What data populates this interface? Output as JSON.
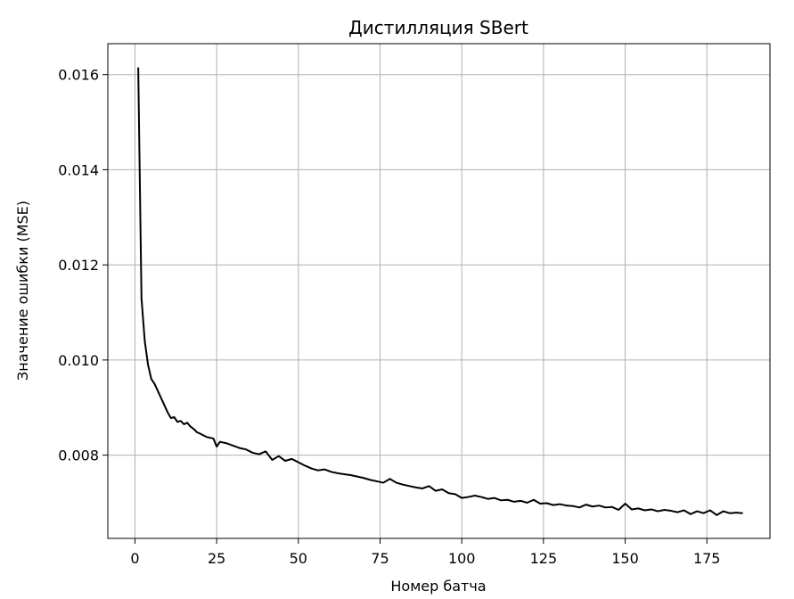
{
  "chart_data": {
    "type": "line",
    "title": "Дистилляция SBert",
    "xlabel": "Номер батча",
    "ylabel": "Значение ошибки (MSE)",
    "xlim": [
      -8.3,
      194.3
    ],
    "ylim": [
      0.00625,
      0.01665
    ],
    "x_ticks": [
      0,
      25,
      50,
      75,
      100,
      125,
      150,
      175
    ],
    "y_ticks": [
      0.008,
      0.01,
      0.012,
      0.014,
      0.016
    ],
    "y_tick_labels": [
      "0.008",
      "0.010",
      "0.012",
      "0.014",
      "0.016"
    ],
    "grid": true,
    "line_color": "#000000",
    "series": [
      {
        "x": [
          1,
          2,
          3,
          4,
          5,
          6,
          7,
          8,
          9,
          10,
          11,
          12,
          13,
          14,
          15,
          16,
          17,
          18,
          19,
          20,
          22,
          24,
          25,
          26,
          28,
          30,
          32,
          34,
          36,
          38,
          40,
          42,
          44,
          46,
          48,
          50,
          52,
          54,
          56,
          58,
          60,
          62,
          64,
          66,
          68,
          70,
          72,
          74,
          76,
          78,
          80,
          82,
          84,
          86,
          88,
          90,
          92,
          94,
          96,
          98,
          100,
          102,
          104,
          106,
          108,
          110,
          112,
          114,
          116,
          118,
          120,
          122,
          124,
          126,
          128,
          130,
          132,
          134,
          136,
          138,
          140,
          142,
          144,
          146,
          148,
          150,
          152,
          154,
          156,
          158,
          160,
          162,
          164,
          166,
          168,
          170,
          172,
          174,
          176,
          178,
          180,
          182,
          184,
          186
        ],
        "y": [
          0.01615,
          0.0113,
          0.0104,
          0.0099,
          0.0096,
          0.0095,
          0.00935,
          0.0092,
          0.00905,
          0.0089,
          0.00878,
          0.0088,
          0.0087,
          0.00872,
          0.00865,
          0.00868,
          0.0086,
          0.00855,
          0.00848,
          0.00845,
          0.00838,
          0.00835,
          0.00818,
          0.00828,
          0.00825,
          0.0082,
          0.00815,
          0.00812,
          0.00805,
          0.00802,
          0.00808,
          0.0079,
          0.00798,
          0.00788,
          0.00792,
          0.00785,
          0.00778,
          0.00772,
          0.00768,
          0.0077,
          0.00765,
          0.00762,
          0.0076,
          0.00758,
          0.00755,
          0.00752,
          0.00748,
          0.00745,
          0.00742,
          0.0075,
          0.00742,
          0.00738,
          0.00735,
          0.00732,
          0.0073,
          0.00735,
          0.00725,
          0.00728,
          0.0072,
          0.00718,
          0.0071,
          0.00712,
          0.00715,
          0.00712,
          0.00708,
          0.0071,
          0.00705,
          0.00706,
          0.00702,
          0.00704,
          0.007,
          0.00706,
          0.00698,
          0.00699,
          0.00695,
          0.00697,
          0.00694,
          0.00693,
          0.0069,
          0.00696,
          0.00692,
          0.00694,
          0.0069,
          0.00691,
          0.00685,
          0.00698,
          0.00686,
          0.00688,
          0.00684,
          0.00686,
          0.00682,
          0.00685,
          0.00683,
          0.0068,
          0.00684,
          0.00676,
          0.00682,
          0.00678,
          0.00684,
          0.00674,
          0.00682,
          0.00678,
          0.00679,
          0.00678
        ]
      }
    ]
  }
}
